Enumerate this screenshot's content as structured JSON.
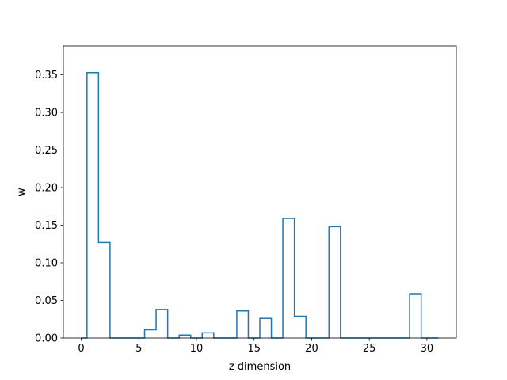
{
  "chart_data": {
    "type": "step",
    "xlabel": "z dimension",
    "ylabel": "w",
    "xlim": [
      -1.55,
      32.55
    ],
    "ylim": [
      0,
      0.3885
    ],
    "x_ticks": [
      0,
      5,
      10,
      15,
      20,
      25,
      30
    ],
    "y_ticks": [
      0.0,
      0.05,
      0.1,
      0.15,
      0.2,
      0.25,
      0.3,
      0.35
    ],
    "x_tick_labels": [
      "0",
      "5",
      "10",
      "15",
      "20",
      "25",
      "30"
    ],
    "y_tick_labels": [
      "0.00",
      "0.05",
      "0.10",
      "0.15",
      "0.20",
      "0.25",
      "0.30",
      "0.35"
    ],
    "grid": false,
    "line_color": "#1f77b4",
    "x": [
      0,
      1,
      2,
      3,
      4,
      5,
      6,
      7,
      8,
      9,
      10,
      11,
      12,
      13,
      14,
      15,
      16,
      17,
      18,
      19,
      20,
      21,
      22,
      23,
      24,
      25,
      26,
      27,
      28,
      29,
      30,
      31
    ],
    "values": [
      0.0,
      0.353,
      0.127,
      0.0,
      0.0,
      0.0,
      0.011,
      0.038,
      0.0,
      0.004,
      0.0,
      0.007,
      0.0,
      0.0,
      0.036,
      0.0,
      0.026,
      0.0,
      0.159,
      0.029,
      0.0,
      0.0,
      0.148,
      0.0,
      0.0,
      0.0,
      0.0,
      0.0,
      0.0,
      0.059,
      0.0,
      0.0
    ]
  }
}
